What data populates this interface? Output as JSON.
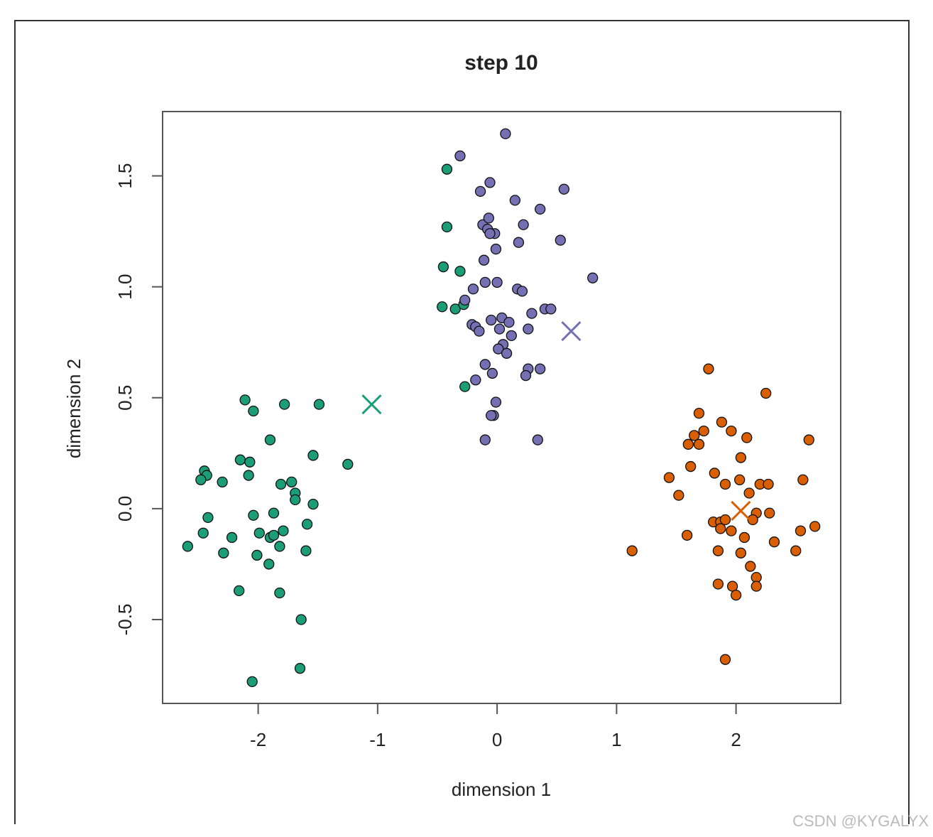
{
  "chart_data": {
    "type": "scatter",
    "title": "step 10",
    "x_label": "dimension 1",
    "y_label": "dimension 2",
    "xlim": [
      -2.8,
      2.876
    ],
    "ylim": [
      -0.878,
      1.79
    ],
    "xticks": [
      -2,
      -1,
      0,
      1,
      2
    ],
    "yticks": [
      -0.5,
      {
        "value": 0,
        "label": "0.0"
      },
      0.5,
      {
        "value": 1,
        "label": "1.0"
      },
      1.5
    ],
    "series": [
      {
        "color": "#1b9e77",
        "x": [
          -2.11,
          -2.04,
          -1.78,
          -1.49,
          -1.9,
          -1.54,
          -1.25,
          -2.15,
          -2.07,
          -2.08,
          -2.45,
          -2.43,
          -2.48,
          -2.3,
          -1.72,
          -1.81,
          -1.69,
          -1.69,
          -1.54,
          -2.42,
          -2.04,
          -1.87,
          -1.59,
          -2.46,
          -2.22,
          -1.99,
          -1.9,
          -1.87,
          -1.79,
          -2.59,
          -1.82,
          -2.29,
          -2.01,
          -1.6,
          -1.91,
          -2.16,
          -1.82,
          -1.64,
          -1.65,
          -2.05,
          -0.42,
          -0.42,
          -0.45,
          -0.31,
          -0.46,
          -0.35,
          -0.28,
          -0.27
        ],
        "y": [
          0.49,
          0.44,
          0.47,
          0.47,
          0.31,
          0.24,
          0.2,
          0.22,
          0.21,
          0.15,
          0.17,
          0.15,
          0.13,
          0.12,
          0.12,
          0.11,
          0.07,
          0.04,
          0.02,
          -0.04,
          -0.03,
          -0.02,
          -0.07,
          -0.11,
          -0.13,
          -0.11,
          -0.13,
          -0.12,
          -0.1,
          -0.17,
          -0.17,
          -0.2,
          -0.21,
          -0.19,
          -0.25,
          -0.37,
          -0.38,
          -0.5,
          -0.72,
          -0.78,
          1.53,
          1.27,
          1.09,
          1.07,
          0.91,
          0.9,
          0.92,
          0.55
        ]
      },
      {
        "color": "#7570b3",
        "x": [
          0.07,
          -0.31,
          -0.06,
          -0.14,
          0.56,
          0.15,
          0.36,
          0.22,
          -0.12,
          -0.07,
          -0.08,
          -0.02,
          -0.06,
          0.18,
          -0.01,
          0.53,
          -0.11,
          0.8,
          -0.2,
          -0.1,
          0.0,
          0.17,
          0.21,
          -0.27,
          0.29,
          0.4,
          0.45,
          -0.05,
          0.04,
          0.1,
          -0.21,
          -0.18,
          -0.15,
          0.02,
          0.26,
          0.12,
          0.05,
          0.01,
          0.08,
          -0.1,
          -0.04,
          0.26,
          0.24,
          0.36,
          -0.18,
          -0.01,
          -0.03,
          -0.05,
          -0.1,
          0.34
        ],
        "y": [
          1.69,
          1.59,
          1.47,
          1.43,
          1.44,
          1.39,
          1.35,
          1.28,
          1.28,
          1.31,
          1.26,
          1.24,
          1.24,
          1.2,
          1.17,
          1.21,
          1.12,
          1.04,
          0.99,
          1.02,
          1.02,
          0.99,
          0.98,
          0.94,
          0.88,
          0.9,
          0.9,
          0.85,
          0.86,
          0.84,
          0.83,
          0.82,
          0.8,
          0.81,
          0.81,
          0.78,
          0.74,
          0.72,
          0.7,
          0.65,
          0.61,
          0.63,
          0.6,
          0.63,
          0.58,
          0.48,
          0.42,
          0.42,
          0.31,
          0.31
        ]
      },
      {
        "color": "#d95f02",
        "x": [
          1.77,
          2.25,
          1.69,
          1.88,
          1.73,
          1.96,
          1.65,
          1.6,
          1.69,
          2.09,
          2.61,
          2.04,
          1.62,
          1.44,
          1.82,
          2.03,
          1.91,
          2.56,
          2.2,
          2.27,
          1.52,
          2.11,
          2.17,
          2.28,
          1.81,
          1.87,
          1.91,
          1.87,
          1.96,
          2.14,
          2.66,
          2.54,
          1.59,
          2.07,
          2.32,
          1.85,
          2.04,
          1.13,
          2.5,
          2.12,
          2.17,
          1.85,
          1.97,
          2.17,
          2.0,
          1.91
        ],
        "y": [
          0.63,
          0.52,
          0.43,
          0.39,
          0.35,
          0.35,
          0.33,
          0.29,
          0.29,
          0.32,
          0.31,
          0.23,
          0.19,
          0.14,
          0.16,
          0.13,
          0.11,
          0.13,
          0.11,
          0.11,
          0.06,
          0.07,
          -0.02,
          -0.02,
          -0.06,
          -0.06,
          -0.05,
          -0.09,
          -0.1,
          -0.05,
          -0.08,
          -0.1,
          -0.12,
          -0.13,
          -0.15,
          -0.19,
          -0.2,
          -0.19,
          -0.19,
          -0.26,
          -0.31,
          -0.34,
          -0.35,
          -0.35,
          -0.39,
          -0.68
        ]
      },
      {
        "marker": "x",
        "colors": [
          "#1b9e77",
          "#7570b3",
          "#d95f02"
        ],
        "x": [
          -1.05,
          0.62,
          2.04
        ],
        "y": [
          0.47,
          0.8,
          -0.01
        ]
      }
    ]
  },
  "watermark": "CSDN @KYGALYX"
}
